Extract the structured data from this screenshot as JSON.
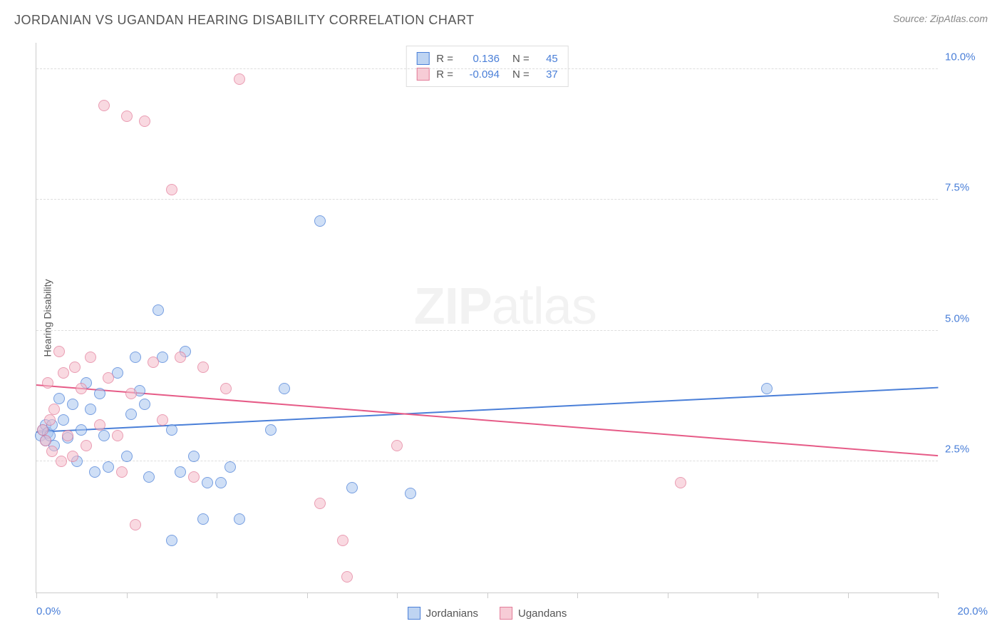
{
  "title": "JORDANIAN VS UGANDAN HEARING DISABILITY CORRELATION CHART",
  "source": "Source: ZipAtlas.com",
  "y_axis_label": "Hearing Disability",
  "watermark_bold": "ZIP",
  "watermark_light": "atlas",
  "chart": {
    "type": "scatter",
    "xlim": [
      0,
      20
    ],
    "ylim": [
      0,
      10.5
    ],
    "x_ticks": [
      0,
      2,
      4,
      6,
      8,
      10,
      12,
      14,
      16,
      18,
      20
    ],
    "x_tick_labels": {
      "0": "0.0%",
      "20": "20.0%"
    },
    "y_gridlines": [
      2.5,
      5.0,
      7.5,
      10.0
    ],
    "y_tick_labels": {
      "2.5": "2.5%",
      "5.0": "5.0%",
      "7.5": "7.5%",
      "10.0": "10.0%"
    },
    "background_color": "#ffffff",
    "grid_color": "#dddddd",
    "axis_color": "#cccccc",
    "tick_label_color": "#4a7fd8",
    "marker_size": 16,
    "series": [
      {
        "name": "Jordanians",
        "fill_color": "#a8c5edbf",
        "stroke_color": "#4a7fd8",
        "trend_color": "#4a7fd8",
        "r_value": "0.136",
        "n_value": "45",
        "trend": {
          "y_at_x0": 3.05,
          "y_at_xmax": 3.9
        },
        "points": [
          [
            0.1,
            3.0
          ],
          [
            0.15,
            3.1
          ],
          [
            0.2,
            2.9
          ],
          [
            0.2,
            3.2
          ],
          [
            0.25,
            3.05
          ],
          [
            0.3,
            3.0
          ],
          [
            0.35,
            3.2
          ],
          [
            0.4,
            2.8
          ],
          [
            0.5,
            3.7
          ],
          [
            0.6,
            3.3
          ],
          [
            0.7,
            2.95
          ],
          [
            0.8,
            3.6
          ],
          [
            0.9,
            2.5
          ],
          [
            1.0,
            3.1
          ],
          [
            1.1,
            4.0
          ],
          [
            1.2,
            3.5
          ],
          [
            1.3,
            2.3
          ],
          [
            1.4,
            3.8
          ],
          [
            1.5,
            3.0
          ],
          [
            1.6,
            2.4
          ],
          [
            1.8,
            4.2
          ],
          [
            2.0,
            2.6
          ],
          [
            2.1,
            3.4
          ],
          [
            2.2,
            4.5
          ],
          [
            2.3,
            3.85
          ],
          [
            2.4,
            3.6
          ],
          [
            2.5,
            2.2
          ],
          [
            2.7,
            5.4
          ],
          [
            2.8,
            4.5
          ],
          [
            3.0,
            1.0
          ],
          [
            3.0,
            3.1
          ],
          [
            3.2,
            2.3
          ],
          [
            3.3,
            4.6
          ],
          [
            3.5,
            2.6
          ],
          [
            3.7,
            1.4
          ],
          [
            3.8,
            2.1
          ],
          [
            4.1,
            2.1
          ],
          [
            4.3,
            2.4
          ],
          [
            4.5,
            1.4
          ],
          [
            5.2,
            3.1
          ],
          [
            5.5,
            3.9
          ],
          [
            6.3,
            7.1
          ],
          [
            7.0,
            2.0
          ],
          [
            8.3,
            1.9
          ],
          [
            16.2,
            3.9
          ]
        ]
      },
      {
        "name": "Ugandans",
        "fill_color": "#f4bbc8bf",
        "stroke_color": "#e37d9a",
        "trend_color": "#e65b87",
        "r_value": "-0.094",
        "n_value": "37",
        "trend": {
          "y_at_x0": 3.95,
          "y_at_xmax": 2.6
        },
        "points": [
          [
            0.15,
            3.1
          ],
          [
            0.2,
            2.9
          ],
          [
            0.25,
            4.0
          ],
          [
            0.3,
            3.3
          ],
          [
            0.35,
            2.7
          ],
          [
            0.4,
            3.5
          ],
          [
            0.5,
            4.6
          ],
          [
            0.55,
            2.5
          ],
          [
            0.6,
            4.2
          ],
          [
            0.7,
            3.0
          ],
          [
            0.8,
            2.6
          ],
          [
            0.85,
            4.3
          ],
          [
            1.0,
            3.9
          ],
          [
            1.1,
            2.8
          ],
          [
            1.2,
            4.5
          ],
          [
            1.4,
            3.2
          ],
          [
            1.5,
            9.3
          ],
          [
            1.6,
            4.1
          ],
          [
            1.8,
            3.0
          ],
          [
            1.9,
            2.3
          ],
          [
            2.0,
            9.1
          ],
          [
            2.1,
            3.8
          ],
          [
            2.2,
            1.3
          ],
          [
            2.4,
            9.0
          ],
          [
            2.6,
            4.4
          ],
          [
            2.8,
            3.3
          ],
          [
            3.0,
            7.7
          ],
          [
            3.2,
            4.5
          ],
          [
            3.5,
            2.2
          ],
          [
            3.7,
            4.3
          ],
          [
            4.2,
            3.9
          ],
          [
            4.5,
            9.8
          ],
          [
            6.3,
            1.7
          ],
          [
            6.8,
            1.0
          ],
          [
            6.9,
            0.3
          ],
          [
            8.0,
            2.8
          ],
          [
            14.3,
            2.1
          ]
        ]
      }
    ],
    "legend_top_labels": {
      "r": "R =",
      "n": "N ="
    }
  }
}
